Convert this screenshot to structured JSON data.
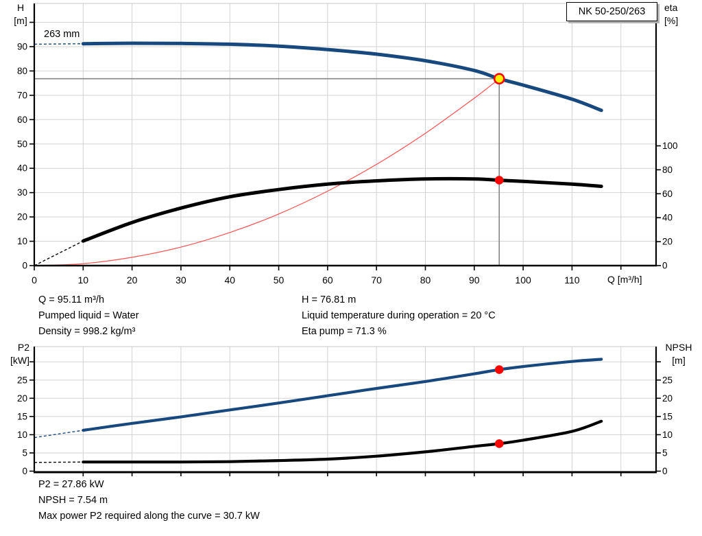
{
  "header": {
    "model": "NK 50-250/263"
  },
  "axes": {
    "h": [
      "H",
      "[m]"
    ],
    "eta": [
      "eta",
      "[%]"
    ],
    "p2": [
      "P2",
      "[kW]"
    ],
    "npsh": [
      "NPSH",
      "[m]"
    ],
    "q_unit": "Q [m³/h]"
  },
  "info_mid_left": [
    "Q = 95.11 m³/h",
    "Pumped liquid = Water",
    "Density = 998.2 kg/m³"
  ],
  "info_mid_right": [
    "H = 76.81 m",
    "Liquid temperature during operation = 20 °C",
    "Eta pump = 71.3 %"
  ],
  "info_bottom": [
    "P2 = 27.86 kW",
    "NPSH = 7.54 m",
    "Max power P2 required along the curve = 30.7 kW"
  ],
  "colors": {
    "curve_blue": "#17497E",
    "curve_black": "#000000",
    "system_red": "#FF5050",
    "marker_red": "#FF0000",
    "marker_yellow": "#FFF200",
    "grid": "#D2D2D2",
    "frame_top": "#C8C8C8",
    "crosshair": "#858585",
    "axis": "#000000"
  },
  "chart_data": [
    {
      "type": "line",
      "title": "NK 50-250/263 head and efficiency vs flow",
      "xlabel": "Q [m³/h]",
      "ylabel_left": "H [m]",
      "ylabel_right": "eta [%]",
      "xlim": [
        0,
        127.2
      ],
      "ylim_left": [
        0,
        108
      ],
      "ylim_right": [
        0,
        219
      ],
      "grid": true,
      "legend_position": "none",
      "x_ticks": [
        0,
        10,
        20,
        30,
        40,
        50,
        60,
        70,
        80,
        90,
        100,
        110
      ],
      "x_minor_ticks": [
        120
      ],
      "left_ticks": [
        0,
        10,
        20,
        30,
        40,
        50,
        60,
        70,
        80,
        90
      ],
      "left_minor_ticks": [
        100
      ],
      "right_ticks": [
        0,
        20,
        40,
        60,
        80,
        100
      ],
      "right_minor_ticks": [],
      "grid_x": [
        10,
        20,
        30,
        40,
        50,
        60,
        70,
        80,
        90,
        100,
        110,
        120
      ],
      "grid_left": [
        10,
        20,
        30,
        40,
        50,
        60,
        70,
        80,
        90,
        100
      ],
      "series": [
        {
          "name": "system-curve",
          "color": "#FF5050",
          "axis": "left",
          "width": 1.2,
          "x": [
            0,
            10,
            20,
            30,
            40,
            50,
            60,
            70,
            80,
            90,
            95.11
          ],
          "y": [
            0,
            0.8,
            3.4,
            7.6,
            13.6,
            21.2,
            30.6,
            41.6,
            54.4,
            68.8,
            76.81
          ]
        },
        {
          "name": "efficiency",
          "color": "#000000",
          "axis": "right",
          "width": 5,
          "dashed_before_x": 10,
          "x": [
            0,
            10,
            20,
            30,
            40,
            50,
            60,
            70,
            80,
            90,
            95.11,
            100,
            110,
            116
          ],
          "y": [
            0,
            20.5,
            36,
            48,
            57.5,
            63.5,
            68,
            70.8,
            72.4,
            72.4,
            71.3,
            70.3,
            68,
            66.2
          ]
        },
        {
          "name": "head-263mm",
          "label": "263 mm",
          "color": "#17497E",
          "axis": "left",
          "width": 5,
          "dashed_before_x": 10,
          "x": [
            0,
            10,
            20,
            30,
            40,
            50,
            60,
            70,
            80,
            90,
            95.11,
            100,
            110,
            116
          ],
          "y": [
            91.0,
            91.2,
            91.4,
            91.3,
            91.0,
            90.2,
            88.8,
            86.9,
            84.2,
            80.2,
            76.81,
            74.2,
            68.4,
            63.8
          ]
        }
      ],
      "crosshair": {
        "q": 95.11,
        "value": 76.81,
        "axis": "left"
      },
      "markers": [
        {
          "name": "eta-point",
          "q": 95.11,
          "value": 71.3,
          "axis": "right",
          "style": "dot"
        },
        {
          "name": "duty-point",
          "q": 95.11,
          "value": 76.81,
          "axis": "left",
          "style": "duty"
        }
      ]
    },
    {
      "type": "line",
      "title": "Power P2 and NPSH vs flow",
      "xlabel": "",
      "ylabel_left": "P2 [kW]",
      "ylabel_right": "NPSH [m]",
      "xlim": [
        0,
        127.2
      ],
      "ylim_left": [
        0,
        34
      ],
      "ylim_right": [
        0,
        34
      ],
      "grid": true,
      "legend_position": "none",
      "x_ticks": [],
      "x_minor_ticks": [
        10,
        20,
        30,
        40,
        50,
        60,
        70,
        80,
        90,
        100,
        110,
        120
      ],
      "left_ticks": [
        0,
        5,
        10,
        15,
        20,
        25
      ],
      "left_minor_ticks": [
        30
      ],
      "right_ticks": [
        0,
        5,
        10,
        15,
        20,
        25
      ],
      "right_minor_ticks": [
        30
      ],
      "grid_x": [
        10,
        20,
        30,
        40,
        50,
        60,
        70,
        80,
        90,
        100,
        110,
        120
      ],
      "grid_left": [
        5,
        10,
        15,
        20,
        25,
        30
      ],
      "series": [
        {
          "name": "power-p2",
          "color": "#17497E",
          "axis": "left",
          "width": 4.2,
          "dashed_before_x": 10,
          "x": [
            0,
            10,
            20,
            30,
            40,
            50,
            60,
            70,
            80,
            90,
            95.11,
            100,
            110,
            116
          ],
          "y": [
            9.2,
            11.2,
            13.1,
            14.9,
            16.8,
            18.7,
            20.7,
            22.7,
            24.6,
            26.7,
            27.86,
            28.7,
            30.1,
            30.7
          ]
        },
        {
          "name": "npsh",
          "color": "#000000",
          "axis": "right",
          "width": 4.2,
          "dashed_before_x": 10,
          "x": [
            0,
            10,
            20,
            30,
            40,
            50,
            60,
            70,
            80,
            90,
            95.11,
            100,
            110,
            116
          ],
          "y": [
            2.4,
            2.5,
            2.5,
            2.5,
            2.6,
            2.9,
            3.3,
            4.1,
            5.3,
            6.8,
            7.54,
            8.5,
            10.9,
            13.7
          ]
        }
      ],
      "markers": [
        {
          "name": "p2-point",
          "q": 95.11,
          "value": 27.86,
          "axis": "left",
          "style": "dot"
        },
        {
          "name": "npsh-point",
          "q": 95.11,
          "value": 7.54,
          "axis": "right",
          "style": "dot"
        }
      ]
    }
  ]
}
